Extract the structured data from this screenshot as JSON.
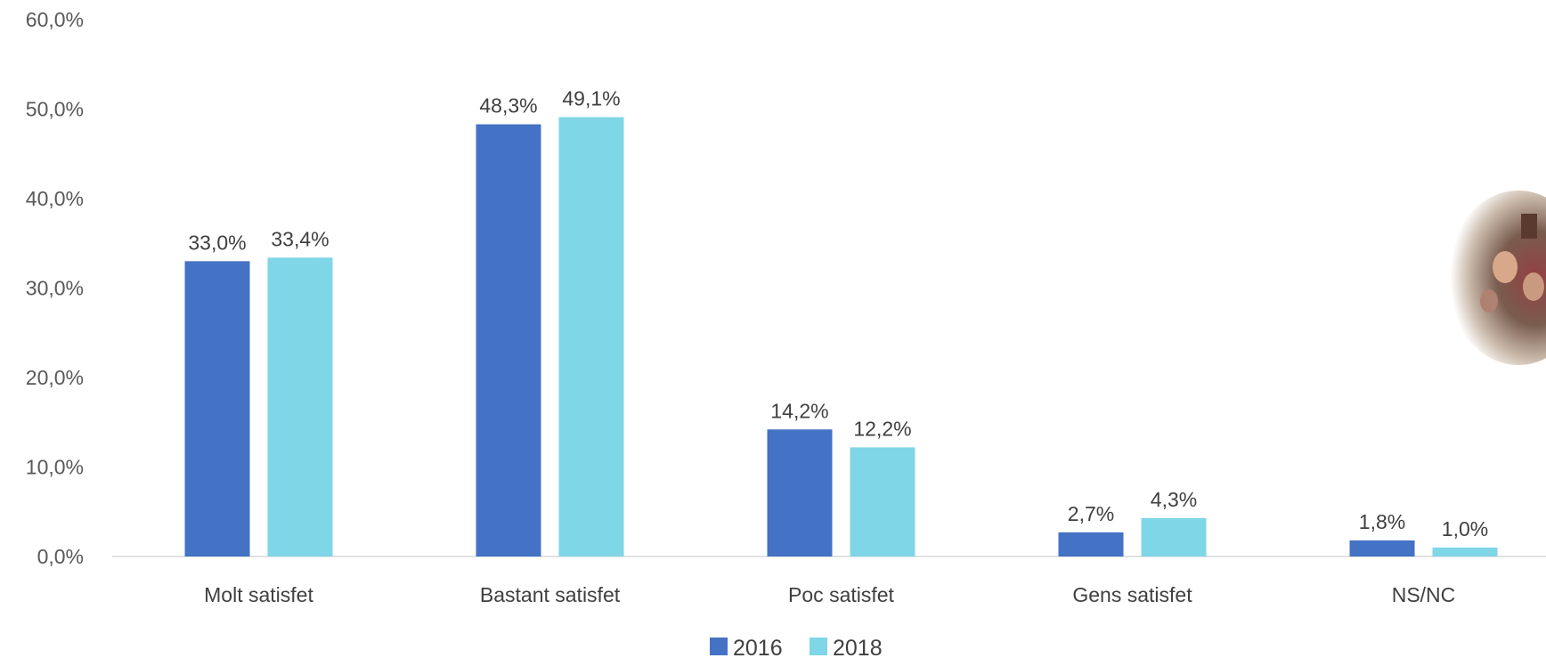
{
  "chart_data": {
    "type": "bar",
    "title": "",
    "xlabel": "",
    "ylabel": "",
    "categories": [
      "Molt satisfet",
      "Bastant satisfet",
      "Poc satisfet",
      "Gens satisfet",
      "NS/NC"
    ],
    "series": [
      {
        "name": "2016",
        "color": "#4472C4",
        "values": [
          33.0,
          48.3,
          14.2,
          2.7,
          1.8
        ],
        "labels": [
          "33,0%",
          "48,3%",
          "14,2%",
          "2,7%",
          "1,8%"
        ]
      },
      {
        "name": "2018",
        "color": "#7fd6e6",
        "values": [
          33.4,
          49.1,
          12.2,
          4.3,
          1.0
        ],
        "labels": [
          "33,4%",
          "49,1%",
          "12,2%",
          "4,3%",
          "1,0%"
        ]
      }
    ],
    "ylim": [
      0,
      60
    ],
    "y_ticks": [
      "0,0%",
      "10,0%",
      "20,0%",
      "30,0%",
      "40,0%",
      "50,0%",
      "60,0%"
    ],
    "grid": false,
    "legend_position": "bottom"
  },
  "decorations": {
    "photo": "crowd-photo-cutout"
  }
}
